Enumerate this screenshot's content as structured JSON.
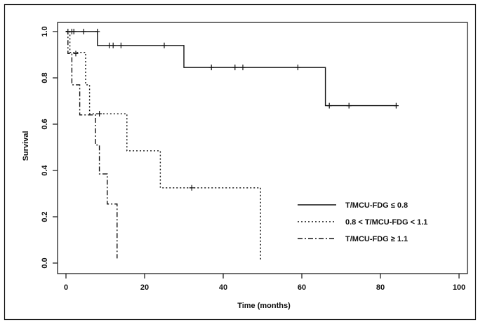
{
  "chart_data": {
    "type": "line",
    "subtype": "kaplan-meier-step",
    "title": "",
    "xlabel": "Time (months)",
    "ylabel": "Survival",
    "xlim": [
      0,
      100
    ],
    "ylim": [
      0,
      1
    ],
    "x_ticks": [
      0,
      20,
      40,
      60,
      80,
      100
    ],
    "y_ticks": [
      0.0,
      0.2,
      0.4,
      0.6,
      0.8,
      1.0
    ],
    "x_tick_labels": [
      "0",
      "20",
      "40",
      "60",
      "80",
      "100"
    ],
    "y_tick_labels": [
      "0.0",
      "0.2",
      "0.4",
      "0.6",
      "0.8",
      "1.0"
    ],
    "grid": false,
    "legend_position": "bottom-right",
    "series": [
      {
        "name": "T/MCU-FDG ≤ 0.8",
        "line_style": "solid",
        "steps": [
          [
            0,
            1.0
          ],
          [
            8,
            0.94
          ],
          [
            30,
            0.845
          ],
          [
            66,
            0.68
          ],
          [
            84,
            0.68
          ]
        ],
        "censored": [
          [
            0.5,
            1.0
          ],
          [
            2,
            1.0
          ],
          [
            4.5,
            1.0
          ],
          [
            8,
            1.0
          ],
          [
            11,
            0.94
          ],
          [
            12,
            0.94
          ],
          [
            14,
            0.94
          ],
          [
            25,
            0.94
          ],
          [
            37,
            0.845
          ],
          [
            43,
            0.845
          ],
          [
            45,
            0.845
          ],
          [
            59,
            0.845
          ],
          [
            67,
            0.68
          ],
          [
            72,
            0.68
          ],
          [
            84,
            0.68
          ]
        ]
      },
      {
        "name": "0.8 < T/MCU-FDG < 1.1",
        "line_style": "dotted",
        "steps": [
          [
            0,
            1.0
          ],
          [
            1,
            0.91
          ],
          [
            5,
            0.77
          ],
          [
            6,
            0.645
          ],
          [
            15.5,
            0.485
          ],
          [
            24,
            0.325
          ],
          [
            49.5,
            0.325
          ],
          [
            49.5,
            0.01
          ]
        ],
        "censored": [
          [
            1.5,
            1.0
          ],
          [
            8.5,
            0.645
          ],
          [
            32,
            0.325
          ]
        ]
      },
      {
        "name": "T/MCU-FDG ≥ 1.1",
        "line_style": "dashdot",
        "steps": [
          [
            0,
            1.0
          ],
          [
            0.5,
            0.905
          ],
          [
            1.5,
            0.77
          ],
          [
            3.5,
            0.64
          ],
          [
            7.5,
            0.51
          ],
          [
            8.5,
            0.385
          ],
          [
            10.5,
            0.255
          ],
          [
            13,
            0.255
          ],
          [
            13,
            0.02
          ]
        ],
        "censored": [
          [
            2.5,
            0.905
          ]
        ]
      }
    ]
  }
}
